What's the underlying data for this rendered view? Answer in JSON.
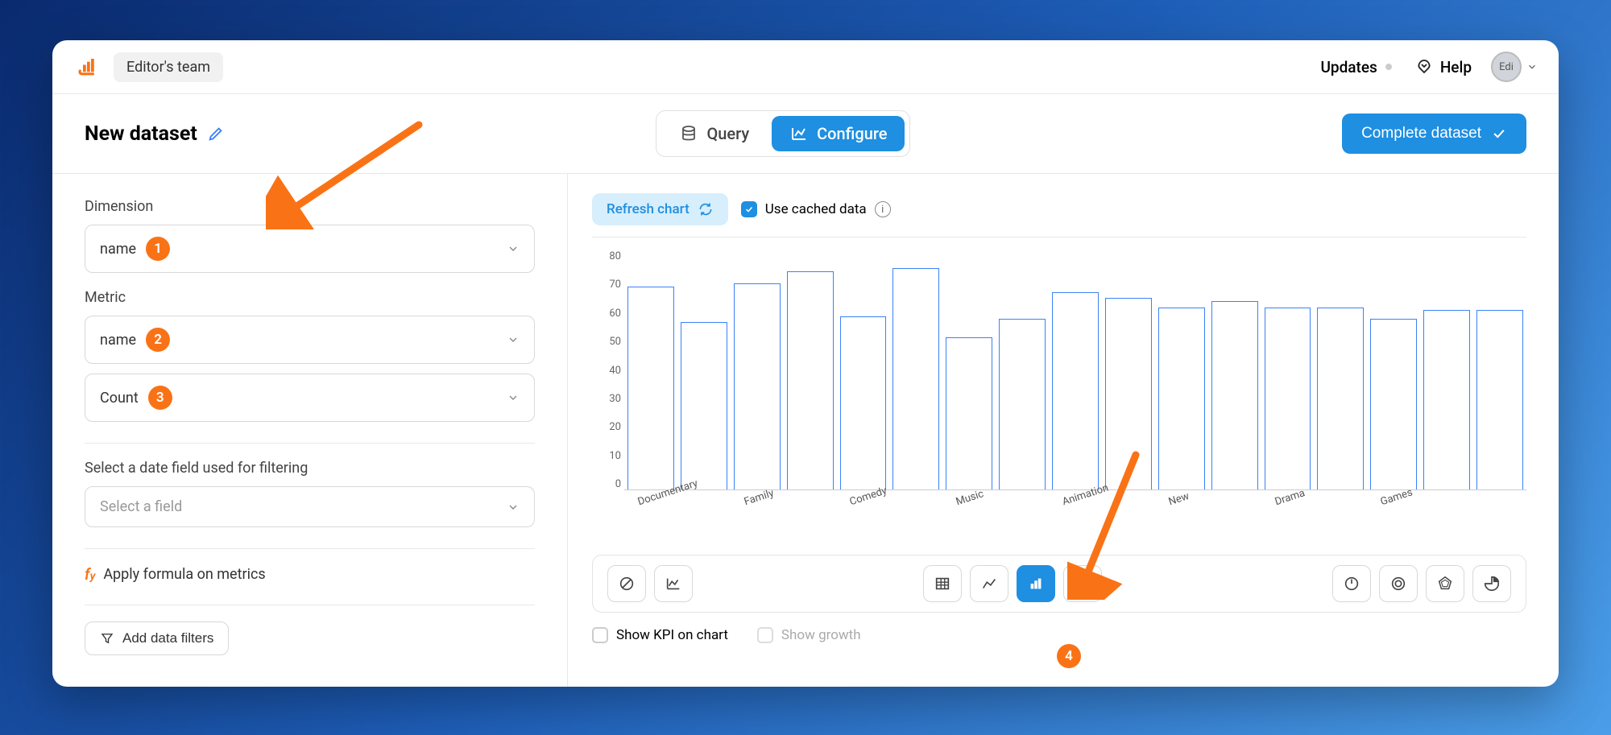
{
  "topbar": {
    "team_label": "Editor's team",
    "updates_label": "Updates",
    "help_label": "Help",
    "avatar_initials": "Edi"
  },
  "titlebar": {
    "page_title": "New dataset",
    "tab_query": "Query",
    "tab_configure": "Configure",
    "complete_btn": "Complete dataset"
  },
  "side": {
    "dimension_label": "Dimension",
    "dimension_value": "name",
    "badge_1": "1",
    "metric_label": "Metric",
    "metric_value": "name",
    "badge_2": "2",
    "agg_value": "Count",
    "badge_3": "3",
    "date_filter_label": "Select a date field used for filtering",
    "date_filter_placeholder": "Select a field",
    "formula_label": "Apply formula on metrics",
    "add_filters_label": "Add data filters"
  },
  "chart": {
    "refresh_label": "Refresh chart",
    "cached_label": "Use cached data",
    "show_kpi_label": "Show KPI on chart",
    "show_growth_label": "Show growth",
    "type": "bar",
    "y_ticks": [
      80,
      70,
      60,
      50,
      40,
      30,
      20,
      10,
      0
    ],
    "ylim_max": 80,
    "bar_border_color": "#3b82f6",
    "bar_fill_color": "#ffffff",
    "values": [
      68,
      56,
      69,
      73,
      58,
      74,
      51,
      57,
      66,
      64,
      61,
      63,
      61,
      61,
      57,
      60,
      60
    ],
    "x_labels": [
      "Documentary",
      "Family",
      "Comedy",
      "Music",
      "Animation",
      "New",
      "Drama",
      "Games"
    ]
  },
  "annotations": {
    "badge_4": "4"
  }
}
